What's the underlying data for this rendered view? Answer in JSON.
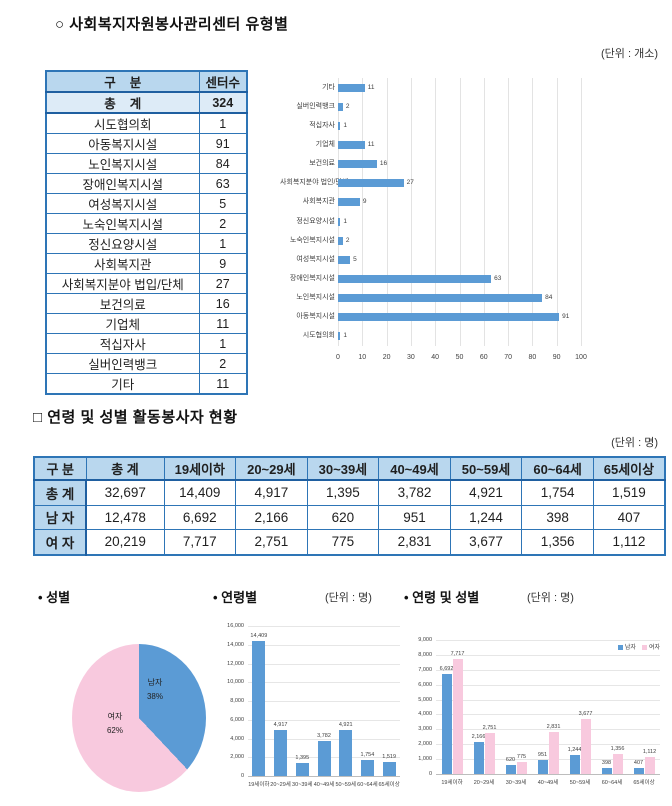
{
  "colors": {
    "accent_blue": "#5b9bd5",
    "accent_pink": "#f8c9de",
    "table_border": "#2e75b6",
    "table_header_bg": "#b9d7ee",
    "table_total_bg": "#ddebf7",
    "gridline": "#e3e3e3"
  },
  "section1": {
    "title": "○ 사회복지자원봉사관리센터 유형별",
    "unit": "(단위 : 개소)",
    "table": {
      "col_headers": [
        "구    분",
        "센터수"
      ],
      "total_row": {
        "label": "총    계",
        "value": "324"
      },
      "rows": [
        {
          "label": "시도협의회",
          "value": "1"
        },
        {
          "label": "아동복지시설",
          "value": "91"
        },
        {
          "label": "노인복지시설",
          "value": "84"
        },
        {
          "label": "장애인복지시설",
          "value": "63"
        },
        {
          "label": "여성복지시설",
          "value": "5"
        },
        {
          "label": "노숙인복지시설",
          "value": "2"
        },
        {
          "label": "정신요양시설",
          "value": "1"
        },
        {
          "label": "사회복지관",
          "value": "9"
        },
        {
          "label": "사회복지분야 법입/단체",
          "value": "27"
        },
        {
          "label": "보건의료",
          "value": "16"
        },
        {
          "label": "기업체",
          "value": "11"
        },
        {
          "label": "적십자사",
          "value": "1"
        },
        {
          "label": "실버인력뱅크",
          "value": "2"
        },
        {
          "label": "기타",
          "value": "11"
        }
      ]
    }
  },
  "section2": {
    "title": "□ 연령 및 성별 활동봉사자 현황",
    "unit": "(단위 : 명)",
    "table": {
      "col_headers": [
        "구 분",
        "총 계",
        "19세이하",
        "20~29세",
        "30~39세",
        "40~49세",
        "50~59세",
        "60~64세",
        "65세이상"
      ],
      "rows": [
        {
          "label": "총 계",
          "values": [
            "32,697",
            "14,409",
            "4,917",
            "1,395",
            "3,782",
            "4,921",
            "1,754",
            "1,519"
          ]
        },
        {
          "label": "남 자",
          "values": [
            "12,478",
            "6,692",
            "2,166",
            "620",
            "951",
            "1,244",
            "398",
            "407"
          ]
        },
        {
          "label": "여 자",
          "values": [
            "20,219",
            "7,717",
            "2,751",
            "775",
            "2,831",
            "3,677",
            "1,356",
            "1,112"
          ]
        }
      ]
    }
  },
  "chart_data": [
    {
      "id": "center-type-hbar",
      "type": "bar",
      "orientation": "horizontal",
      "categories": [
        "기타",
        "실버인력뱅크",
        "적십자사",
        "기업체",
        "보건의료",
        "사회복지분야 법인/단체",
        "사회복지관",
        "정신요양시설",
        "노숙인복지시설",
        "여성복지시설",
        "장애인복지시설",
        "노인복지시설",
        "아동복지시설",
        "시도협의회"
      ],
      "values": [
        11,
        2,
        1,
        11,
        16,
        27,
        9,
        1,
        2,
        5,
        63,
        84,
        91,
        1
      ],
      "xlim": [
        0,
        100
      ],
      "xticks": [
        0,
        10,
        20,
        30,
        40,
        50,
        60,
        70,
        80,
        90,
        100
      ],
      "bar_color": "#5b9bd5",
      "grid": true
    },
    {
      "id": "gender-pie",
      "type": "pie",
      "title": "• 성별",
      "slices": [
        {
          "label": "남자",
          "pct": 38,
          "pct_label": "38%",
          "color": "#5b9bd5"
        },
        {
          "label": "여자",
          "pct": 62,
          "pct_label": "62%",
          "color": "#f8c9de"
        }
      ]
    },
    {
      "id": "age-vbar",
      "type": "bar",
      "title": "• 연령별",
      "unit": "(단위 : 명)",
      "categories": [
        "19세이하",
        "20~29세",
        "30~39세",
        "40~49세",
        "50~59세",
        "60~64세",
        "65세이상"
      ],
      "values": [
        14409,
        4917,
        1395,
        3782,
        4921,
        1754,
        1519
      ],
      "value_labels": [
        "14,409",
        "4,917",
        "1,395",
        "3,782",
        "4,921",
        "1,754",
        "1,519"
      ],
      "ylim": [
        0,
        16000
      ],
      "ytick_step": 2000,
      "ytick_labels": [
        "0",
        "2,000",
        "4,000",
        "6,000",
        "8,000",
        "10,000",
        "12,000",
        "14,000",
        "16,000"
      ],
      "bar_color": "#5b9bd5",
      "grid": true
    },
    {
      "id": "age-gender-vbar",
      "type": "bar",
      "title": "• 연령 및 성별",
      "unit": "(단위 : 명)",
      "categories": [
        "19세이하",
        "20~29세",
        "30~39세",
        "40~49세",
        "50~59세",
        "60~64세",
        "65세이상"
      ],
      "series": [
        {
          "name": "남자",
          "color": "#5b9bd5",
          "values": [
            6692,
            2166,
            620,
            951,
            1244,
            398,
            407
          ],
          "value_labels": [
            "6,692",
            "2,166",
            "620",
            "951",
            "1,244",
            "398",
            "407"
          ]
        },
        {
          "name": "여자",
          "color": "#f8c9de",
          "values": [
            7717,
            2751,
            775,
            2831,
            3677,
            1356,
            1112
          ],
          "value_labels": [
            "7,717",
            "2,751",
            "775",
            "2,831",
            "3,677",
            "1,356",
            "1,112"
          ]
        }
      ],
      "ylim": [
        0,
        9000
      ],
      "ytick_step": 1000,
      "ytick_labels": [
        "0",
        "1,000",
        "2,000",
        "3,000",
        "4,000",
        "5,000",
        "6,000",
        "7,000",
        "8,000",
        "9,000"
      ],
      "legend_position": "top-right",
      "grid": true
    }
  ]
}
